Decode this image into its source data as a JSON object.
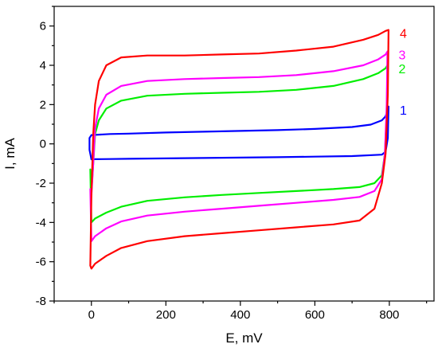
{
  "chart_data": {
    "type": "line",
    "title": "",
    "xlabel": "E, mV",
    "ylabel": "I, mA",
    "xlim": [
      -100,
      920
    ],
    "ylim": [
      -8,
      7
    ],
    "xticks": [
      0,
      200,
      400,
      600,
      800
    ],
    "yticks": [
      -8,
      -6,
      -4,
      -2,
      0,
      2,
      4,
      6
    ],
    "grid": false,
    "legend": "inline labels at right end of curves",
    "series": [
      {
        "name": "1",
        "color": "#0000ff",
        "x": [
          -5,
          -5,
          0,
          50,
          100,
          200,
          300,
          400,
          500,
          600,
          700,
          750,
          780,
          790,
          795,
          798,
          796,
          790,
          780,
          700,
          600,
          500,
          400,
          300,
          200,
          100,
          50,
          10,
          0,
          -5
        ],
        "y": [
          -0.3,
          0.3,
          0.45,
          0.5,
          0.52,
          0.58,
          0.62,
          0.66,
          0.7,
          0.76,
          0.86,
          0.98,
          1.2,
          1.4,
          1.7,
          1.9,
          0.3,
          -0.4,
          -0.55,
          -0.62,
          -0.65,
          -0.68,
          -0.7,
          -0.72,
          -0.74,
          -0.76,
          -0.77,
          -0.78,
          -0.79,
          -0.3
        ]
      },
      {
        "name": "2",
        "color": "#00ee00",
        "x": [
          -3,
          0,
          5,
          10,
          20,
          40,
          80,
          150,
          250,
          350,
          450,
          550,
          650,
          730,
          770,
          790,
          795,
          793,
          788,
          780,
          760,
          720,
          650,
          550,
          450,
          350,
          250,
          150,
          80,
          40,
          10,
          0,
          -3
        ],
        "y": [
          -1.3,
          -2.4,
          -1.0,
          0.5,
          1.2,
          1.8,
          2.2,
          2.45,
          2.55,
          2.6,
          2.65,
          2.75,
          2.95,
          3.3,
          3.6,
          3.85,
          4.0,
          1.5,
          -0.5,
          -1.6,
          -2.0,
          -2.2,
          -2.3,
          -2.4,
          -2.5,
          -2.6,
          -2.72,
          -2.9,
          -3.2,
          -3.5,
          -3.8,
          -4.0,
          -1.3
        ]
      },
      {
        "name": "3",
        "color": "#ff00ff",
        "x": [
          -3,
          0,
          5,
          10,
          20,
          40,
          80,
          150,
          250,
          350,
          450,
          550,
          650,
          730,
          770,
          790,
          795,
          793,
          788,
          780,
          760,
          720,
          650,
          550,
          450,
          350,
          250,
          150,
          80,
          40,
          10,
          0,
          -3
        ],
        "y": [
          -2.3,
          -2.6,
          -1.0,
          0.8,
          1.8,
          2.5,
          2.95,
          3.2,
          3.3,
          3.35,
          3.4,
          3.5,
          3.7,
          4.0,
          4.3,
          4.55,
          4.7,
          2.0,
          -0.5,
          -1.8,
          -2.4,
          -2.7,
          -2.85,
          -3.0,
          -3.15,
          -3.3,
          -3.45,
          -3.65,
          -3.95,
          -4.3,
          -4.7,
          -4.95,
          -2.3
        ]
      },
      {
        "name": "4",
        "color": "#ff0000",
        "x": [
          -3,
          0,
          5,
          10,
          20,
          40,
          80,
          150,
          250,
          350,
          450,
          550,
          650,
          730,
          770,
          790,
          798,
          796,
          790,
          780,
          760,
          720,
          650,
          550,
          450,
          350,
          250,
          150,
          80,
          40,
          10,
          0,
          -3
        ],
        "y": [
          -6.2,
          -2.6,
          0.5,
          2.0,
          3.2,
          4.0,
          4.4,
          4.5,
          4.5,
          4.55,
          4.6,
          4.75,
          4.95,
          5.3,
          5.55,
          5.75,
          5.8,
          2.5,
          -0.5,
          -2.0,
          -3.3,
          -3.9,
          -4.1,
          -4.25,
          -4.4,
          -4.55,
          -4.7,
          -4.95,
          -5.3,
          -5.7,
          -6.1,
          -6.35,
          -6.2
        ]
      }
    ]
  }
}
